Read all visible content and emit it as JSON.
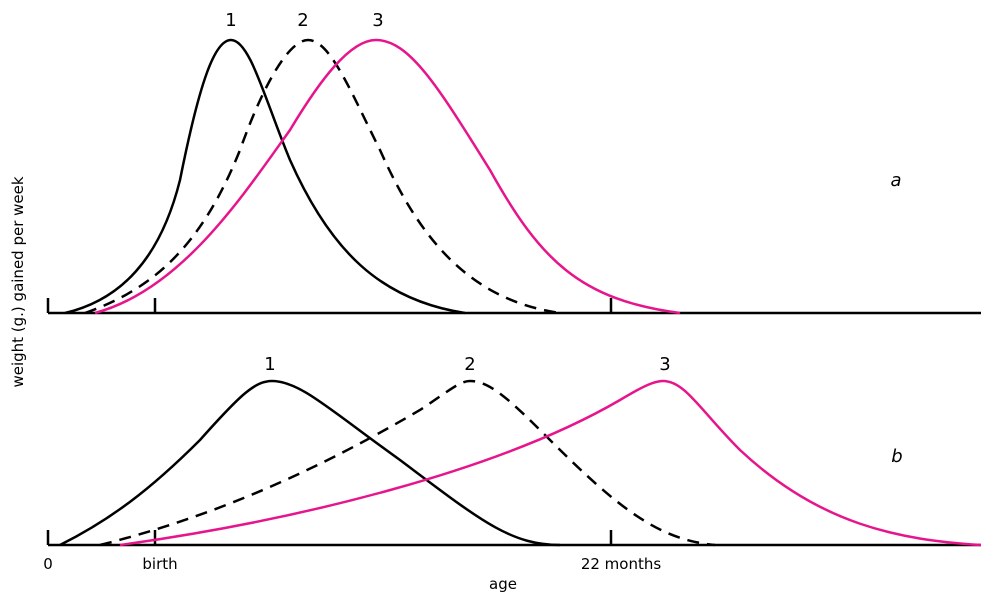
{
  "y_axis_label": "weight (g.) gained per week",
  "x_axis_label": "age",
  "x_marks": [
    "0",
    "birth",
    "22 months"
  ],
  "panels": [
    {
      "label": "a",
      "curves": [
        "1",
        "2",
        "3"
      ]
    },
    {
      "label": "b",
      "curves": [
        "1",
        "2",
        "3"
      ]
    }
  ]
}
